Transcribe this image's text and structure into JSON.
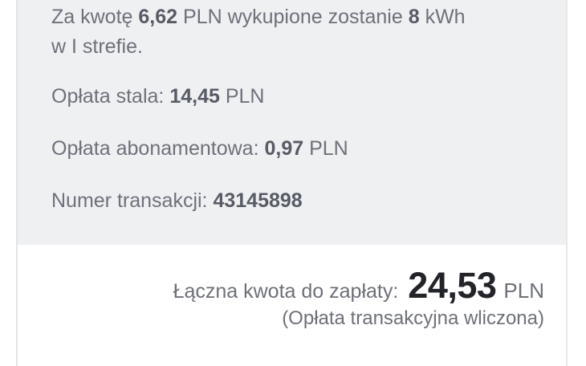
{
  "colors": {
    "panel_background": "#eff0f2",
    "text_muted": "#6e717a",
    "text_emphasis": "#575b65",
    "total_amount_color": "#232429",
    "card_border": "#e2e4e8",
    "page_background": "#ffffff"
  },
  "panel": {
    "purchase": {
      "prefix": "Za kwotę ",
      "amount": "6,62",
      "after_amount": " PLN wykupione zostanie ",
      "energy": "8",
      "after_energy": " kWh",
      "second_line": "w I strefie."
    },
    "rows": [
      {
        "label": "Opłata stala: ",
        "value": "14,45",
        "suffix": " PLN"
      },
      {
        "label": "Opłata abonamentowa: ",
        "value": "0,97",
        "suffix": " PLN"
      },
      {
        "label": "Numer transakcji: ",
        "value": "43145898",
        "suffix": ""
      }
    ]
  },
  "total": {
    "label": "Łączna kwota do zapłaty:",
    "amount": "24,53",
    "currency": "PLN",
    "note": "(Opłata transakcyjna wliczona)"
  }
}
